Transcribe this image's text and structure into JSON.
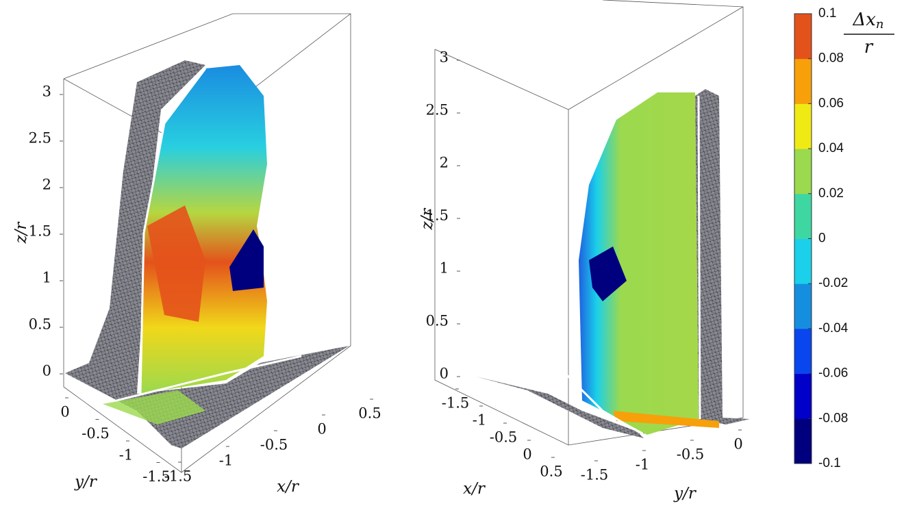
{
  "chart_data": [
    {
      "type": "surface3d",
      "xlabel": "x/r",
      "ylabel": "y/r",
      "zlabel": "z/r",
      "xticks": [
        -1.5,
        -1,
        -0.5,
        0,
        0.5
      ],
      "yticks": [
        -1.5,
        -1,
        -0.5,
        0
      ],
      "zticks": [
        0,
        0.5,
        1,
        1.5,
        2,
        2.5,
        3
      ]
    },
    {
      "type": "surface3d",
      "xlabel": "x/r",
      "ylabel": "y/r",
      "zlabel": "z/r",
      "xticks": [
        -1.5,
        -1,
        -0.5,
        0,
        0.5
      ],
      "yticks": [
        -1.5,
        -1,
        -0.5,
        0
      ],
      "zticks": [
        0,
        0.5,
        1,
        1.5,
        2,
        2.5,
        3
      ]
    },
    {
      "type": "colorbar",
      "label_numerator": "Δx",
      "label_subscript": "n",
      "label_denominator": "r",
      "ylim": [
        -0.1,
        0.1
      ],
      "yticks": [
        -0.1,
        -0.08,
        -0.06,
        -0.04,
        -0.02,
        0,
        0.02,
        0.04,
        0.06,
        0.08,
        0.1
      ],
      "colors": [
        "#00007f",
        "#0000c8",
        "#0a46ee",
        "#168edf",
        "#1ad0ea",
        "#3ed7a2",
        "#9bd94e",
        "#f0ea14",
        "#f7a00a",
        "#e4521b"
      ]
    }
  ]
}
